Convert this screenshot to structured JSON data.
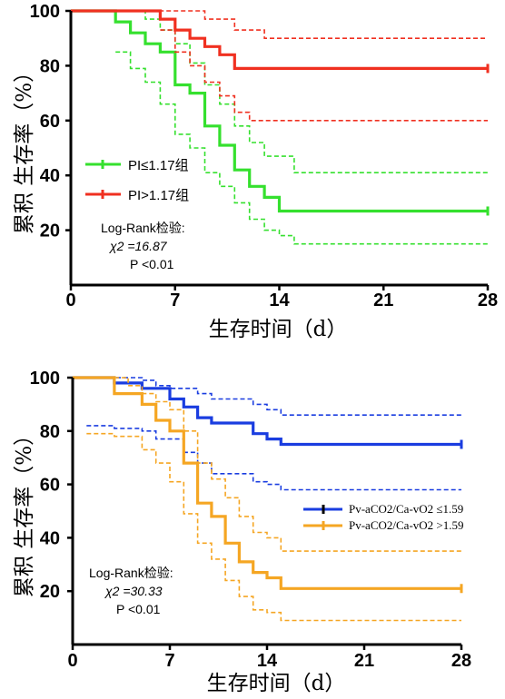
{
  "chart_data": [
    {
      "type": "line",
      "xlabel": "生存时间（d）",
      "ylabel": "累积 生存率（%）",
      "xlim": [
        0,
        28
      ],
      "ylim": [
        0,
        100
      ],
      "x_ticks": [
        "0",
        "7",
        "14",
        "21",
        "28"
      ],
      "y_ticks": [
        "20",
        "40",
        "60",
        "80",
        "100"
      ],
      "legend_position": "middle-left",
      "annotation": {
        "line1": "Log-Rank检验:",
        "chi": "χ2 =16.87",
        "p": "P <0.01"
      },
      "series": [
        {
          "name": "PI≤1.17组",
          "color": "#35e02e",
          "survival": [
            [
              0,
              100
            ],
            [
              3,
              100
            ],
            [
              3,
              96
            ],
            [
              4,
              96
            ],
            [
              4,
              92
            ],
            [
              5,
              92
            ],
            [
              5,
              88
            ],
            [
              6,
              88
            ],
            [
              6,
              85
            ],
            [
              7,
              85
            ],
            [
              7,
              73
            ],
            [
              8,
              73
            ],
            [
              8,
              70
            ],
            [
              9,
              70
            ],
            [
              9,
              58
            ],
            [
              10,
              58
            ],
            [
              10,
              51
            ],
            [
              11,
              51
            ],
            [
              11,
              42
            ],
            [
              12,
              42
            ],
            [
              12,
              36
            ],
            [
              13,
              36
            ],
            [
              13,
              32
            ],
            [
              14,
              32
            ],
            [
              14,
              27
            ],
            [
              15,
              27
            ],
            [
              15,
              27
            ],
            [
              28,
              27
            ]
          ],
          "ci_upper": [
            [
              0,
              100
            ],
            [
              3,
              100
            ],
            [
              3,
              100
            ],
            [
              5,
              100
            ],
            [
              5,
              97
            ],
            [
              6,
              97
            ],
            [
              6,
              93
            ],
            [
              7,
              93
            ],
            [
              7,
              88
            ],
            [
              8,
              88
            ],
            [
              8,
              81
            ],
            [
              9,
              81
            ],
            [
              9,
              73
            ],
            [
              10,
              73
            ],
            [
              10,
              66
            ],
            [
              11,
              66
            ],
            [
              11,
              58
            ],
            [
              12,
              58
            ],
            [
              12,
              52
            ],
            [
              13,
              52
            ],
            [
              13,
              47
            ],
            [
              15,
              47
            ],
            [
              15,
              41
            ],
            [
              28,
              41
            ]
          ],
          "ci_lower": [
            [
              3,
              85
            ],
            [
              4,
              85
            ],
            [
              4,
              79
            ],
            [
              5,
              79
            ],
            [
              5,
              74
            ],
            [
              6,
              74
            ],
            [
              6,
              66
            ],
            [
              7,
              66
            ],
            [
              7,
              55
            ],
            [
              8,
              55
            ],
            [
              8,
              50
            ],
            [
              9,
              50
            ],
            [
              9,
              41
            ],
            [
              10,
              41
            ],
            [
              10,
              36
            ],
            [
              11,
              36
            ],
            [
              11,
              30
            ],
            [
              12,
              30
            ],
            [
              12,
              24
            ],
            [
              13,
              24
            ],
            [
              13,
              20
            ],
            [
              14,
              20
            ],
            [
              14,
              18
            ],
            [
              15,
              18
            ],
            [
              15,
              15
            ],
            [
              28,
              15
            ]
          ]
        },
        {
          "name": "PI>1.17组",
          "color": "#f03020",
          "survival": [
            [
              0,
              100
            ],
            [
              6,
              100
            ],
            [
              6,
              97
            ],
            [
              7,
              97
            ],
            [
              7,
              93
            ],
            [
              8,
              93
            ],
            [
              8,
              90
            ],
            [
              9,
              90
            ],
            [
              9,
              87
            ],
            [
              10,
              87
            ],
            [
              10,
              84
            ],
            [
              11,
              84
            ],
            [
              11,
              79
            ],
            [
              28,
              79
            ]
          ],
          "ci_upper": [
            [
              3,
              100
            ],
            [
              9,
              100
            ],
            [
              9,
              97
            ],
            [
              11,
              97
            ],
            [
              11,
              93
            ],
            [
              13,
              93
            ],
            [
              13,
              90
            ],
            [
              28,
              90
            ]
          ],
          "ci_lower": [
            [
              6,
              93
            ],
            [
              7,
              93
            ],
            [
              7,
              85
            ],
            [
              8,
              85
            ],
            [
              8,
              80
            ],
            [
              9,
              80
            ],
            [
              9,
              74
            ],
            [
              10,
              74
            ],
            [
              10,
              69
            ],
            [
              11,
              69
            ],
            [
              11,
              63
            ],
            [
              12,
              63
            ],
            [
              12,
              60
            ],
            [
              28,
              60
            ]
          ]
        }
      ]
    },
    {
      "type": "line",
      "xlabel": "生存时间（d）",
      "ylabel": "累积 生存率（%）",
      "xlim": [
        0,
        28
      ],
      "ylim": [
        0,
        100
      ],
      "x_ticks": [
        "0",
        "7",
        "14",
        "21",
        "28"
      ],
      "y_ticks": [
        "20",
        "40",
        "60",
        "80",
        "100"
      ],
      "legend_position": "middle-right",
      "annotation": {
        "line1": "Log-Rank检验:",
        "chi": "χ2 =30.33",
        "p": "P <0.01"
      },
      "series": [
        {
          "name": "Pv-aCO2/Ca-vO2 ≤1.59",
          "color": "#1a3de0",
          "survival": [
            [
              0,
              100
            ],
            [
              3,
              100
            ],
            [
              3,
              98
            ],
            [
              5,
              98
            ],
            [
              5,
              96
            ],
            [
              7,
              96
            ],
            [
              7,
              92
            ],
            [
              8,
              92
            ],
            [
              8,
              89
            ],
            [
              9,
              89
            ],
            [
              9,
              85
            ],
            [
              10,
              85
            ],
            [
              10,
              83
            ],
            [
              13,
              83
            ],
            [
              13,
              79
            ],
            [
              14,
              79
            ],
            [
              14,
              77
            ],
            [
              15,
              77
            ],
            [
              15,
              75
            ],
            [
              28,
              75
            ]
          ],
          "ci_upper": [
            [
              0,
              100
            ],
            [
              5,
              100
            ],
            [
              5,
              99
            ],
            [
              6,
              99
            ],
            [
              6,
              97
            ],
            [
              7,
              97
            ],
            [
              7,
              96
            ],
            [
              9,
              96
            ],
            [
              9,
              94
            ],
            [
              10,
              94
            ],
            [
              10,
              92
            ],
            [
              13,
              92
            ],
            [
              13,
              90
            ],
            [
              14,
              90
            ],
            [
              14,
              88
            ],
            [
              15,
              88
            ],
            [
              15,
              86
            ],
            [
              28,
              86
            ]
          ],
          "ci_lower": [
            [
              1,
              82
            ],
            [
              3,
              82
            ],
            [
              3,
              81
            ],
            [
              5,
              81
            ],
            [
              5,
              80
            ],
            [
              6,
              80
            ],
            [
              6,
              77
            ],
            [
              8,
              77
            ],
            [
              8,
              72
            ],
            [
              9,
              72
            ],
            [
              9,
              68
            ],
            [
              10,
              68
            ],
            [
              10,
              64
            ],
            [
              13,
              64
            ],
            [
              13,
              61
            ],
            [
              14,
              61
            ],
            [
              14,
              60
            ],
            [
              15,
              60
            ],
            [
              15,
              58
            ],
            [
              28,
              58
            ]
          ]
        },
        {
          "name": "Pv-aCO2/Ca-vO2 >1.59",
          "color": "#f5a623",
          "survival": [
            [
              0,
              100
            ],
            [
              3,
              100
            ],
            [
              3,
              94
            ],
            [
              5,
              94
            ],
            [
              5,
              90
            ],
            [
              6,
              90
            ],
            [
              6,
              84
            ],
            [
              7,
              84
            ],
            [
              7,
              80
            ],
            [
              8,
              80
            ],
            [
              8,
              68
            ],
            [
              9,
              68
            ],
            [
              9,
              53
            ],
            [
              10,
              53
            ],
            [
              10,
              48
            ],
            [
              11,
              48
            ],
            [
              11,
              38
            ],
            [
              12,
              38
            ],
            [
              12,
              31
            ],
            [
              13,
              31
            ],
            [
              13,
              27
            ],
            [
              14,
              27
            ],
            [
              14,
              25
            ],
            [
              15,
              25
            ],
            [
              15,
              21
            ],
            [
              28,
              21
            ]
          ],
          "ci_upper": [
            [
              3,
              100
            ],
            [
              4,
              100
            ],
            [
              4,
              97
            ],
            [
              5,
              97
            ],
            [
              5,
              94
            ],
            [
              6,
              94
            ],
            [
              6,
              91
            ],
            [
              7,
              91
            ],
            [
              7,
              88
            ],
            [
              8,
              88
            ],
            [
              8,
              80
            ],
            [
              9,
              80
            ],
            [
              9,
              68
            ],
            [
              10,
              68
            ],
            [
              10,
              62
            ],
            [
              11,
              62
            ],
            [
              11,
              55
            ],
            [
              12,
              55
            ],
            [
              12,
              48
            ],
            [
              13,
              48
            ],
            [
              13,
              42
            ],
            [
              14,
              42
            ],
            [
              14,
              40
            ],
            [
              15,
              40
            ],
            [
              15,
              35
            ],
            [
              28,
              35
            ]
          ],
          "ci_lower": [
            [
              1,
              79
            ],
            [
              3,
              79
            ],
            [
              3,
              78
            ],
            [
              5,
              78
            ],
            [
              5,
              73
            ],
            [
              6,
              73
            ],
            [
              6,
              68
            ],
            [
              7,
              68
            ],
            [
              7,
              61
            ],
            [
              8,
              61
            ],
            [
              8,
              49
            ],
            [
              9,
              49
            ],
            [
              9,
              38
            ],
            [
              10,
              38
            ],
            [
              10,
              32
            ],
            [
              11,
              32
            ],
            [
              11,
              24
            ],
            [
              12,
              24
            ],
            [
              12,
              18
            ],
            [
              13,
              18
            ],
            [
              13,
              13
            ],
            [
              14,
              13
            ],
            [
              14,
              12
            ],
            [
              15,
              12
            ],
            [
              15,
              9
            ],
            [
              28,
              9
            ]
          ]
        }
      ]
    }
  ]
}
